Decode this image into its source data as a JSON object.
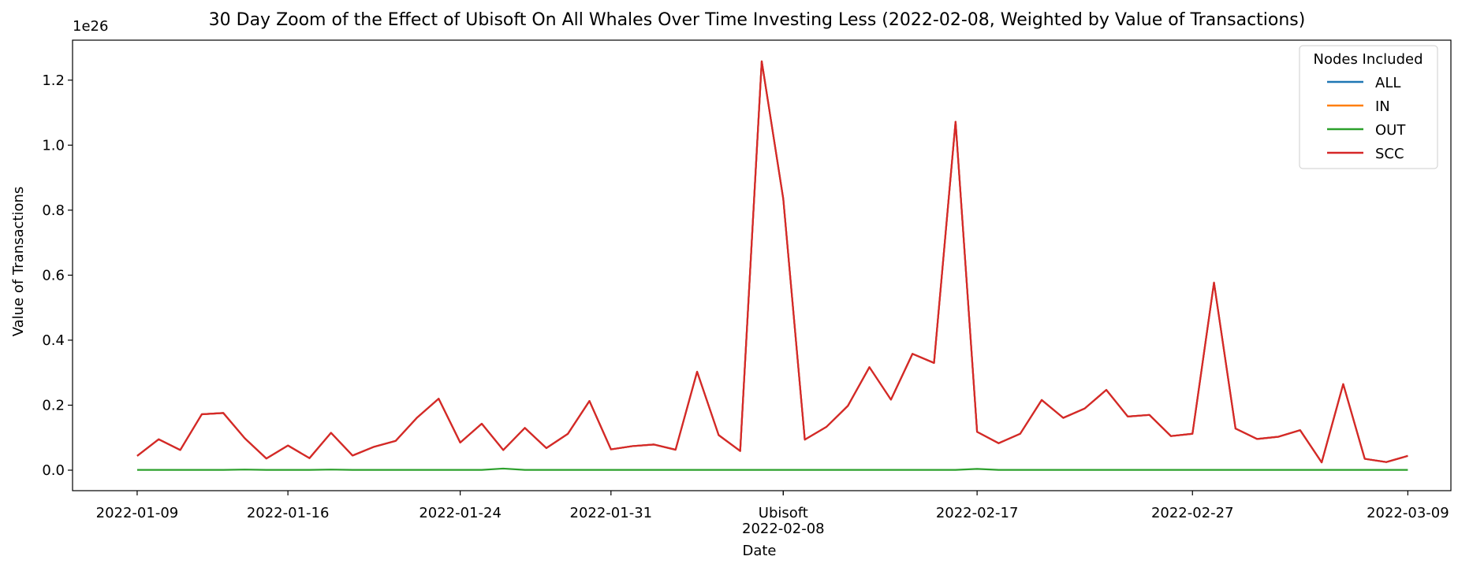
{
  "chart_data": {
    "type": "line",
    "title": "30 Day Zoom of the Effect of Ubisoft On All Whales Over Time Investing Less (2022-02-08, Weighted by Value of Transactions)",
    "xlabel": "Date",
    "ylabel": "Value of Transactions",
    "y_scale_label": "1e26",
    "ylim": [
      -0.063,
      1.323
    ],
    "xlim": [
      "2022-01-06",
      "2022-03-11"
    ],
    "y_ticks": [
      0.0,
      0.2,
      0.4,
      0.6,
      0.8,
      1.0,
      1.2
    ],
    "y_tick_labels": [
      "0.0",
      "0.2",
      "0.4",
      "0.6",
      "0.8",
      "1.0",
      "1.2"
    ],
    "x_ticks": [
      {
        "date": "2022-01-09",
        "label": "2022-01-09"
      },
      {
        "date": "2022-01-16",
        "label": "2022-01-16"
      },
      {
        "date": "2022-01-24",
        "label": "2022-01-24"
      },
      {
        "date": "2022-01-31",
        "label": "2022-01-31"
      },
      {
        "date": "2022-02-08",
        "label": "2022-02-08"
      },
      {
        "date": "2022-02-17",
        "label": "2022-02-17"
      },
      {
        "date": "2022-02-27",
        "label": "2022-02-27"
      },
      {
        "date": "2022-03-09",
        "label": "2022-03-09"
      }
    ],
    "event": {
      "date": "2022-02-08",
      "label": "Ubisoft"
    },
    "grid": false,
    "legend": {
      "title": "Nodes Included",
      "position": "top-right"
    },
    "x": [
      "2022-01-09",
      "2022-01-10",
      "2022-01-11",
      "2022-01-12",
      "2022-01-13",
      "2022-01-14",
      "2022-01-15",
      "2022-01-16",
      "2022-01-17",
      "2022-01-18",
      "2022-01-19",
      "2022-01-20",
      "2022-01-21",
      "2022-01-22",
      "2022-01-23",
      "2022-01-24",
      "2022-01-25",
      "2022-01-26",
      "2022-01-27",
      "2022-01-28",
      "2022-01-29",
      "2022-01-30",
      "2022-01-31",
      "2022-02-01",
      "2022-02-02",
      "2022-02-03",
      "2022-02-04",
      "2022-02-05",
      "2022-02-06",
      "2022-02-07",
      "2022-02-08",
      "2022-02-09",
      "2022-02-10",
      "2022-02-11",
      "2022-02-12",
      "2022-02-13",
      "2022-02-14",
      "2022-02-15",
      "2022-02-16",
      "2022-02-17",
      "2022-02-18",
      "2022-02-19",
      "2022-02-20",
      "2022-02-21",
      "2022-02-22",
      "2022-02-23",
      "2022-02-24",
      "2022-02-25",
      "2022-02-26",
      "2022-02-27",
      "2022-02-28",
      "2022-03-01",
      "2022-03-02",
      "2022-03-03",
      "2022-03-04",
      "2022-03-05",
      "2022-03-06",
      "2022-03-07",
      "2022-03-08",
      "2022-03-09"
    ],
    "series": [
      {
        "name": "ALL",
        "color": "#1f77b4",
        "values": [
          0.044,
          0.095,
          0.062,
          0.172,
          0.176,
          0.098,
          0.036,
          0.076,
          0.037,
          0.115,
          0.045,
          0.072,
          0.09,
          0.162,
          0.22,
          0.085,
          0.143,
          0.062,
          0.13,
          0.068,
          0.112,
          0.213,
          0.064,
          0.074,
          0.079,
          0.063,
          0.303,
          0.108,
          0.059,
          1.258,
          0.835,
          0.094,
          0.133,
          0.198,
          0.317,
          0.217,
          0.358,
          0.33,
          1.072,
          0.118,
          0.083,
          0.112,
          0.216,
          0.161,
          0.19,
          0.247,
          0.165,
          0.17,
          0.105,
          0.112,
          0.577,
          0.128,
          0.096,
          0.103,
          0.123,
          0.024,
          0.265,
          0.035,
          0.025,
          0.044
        ]
      },
      {
        "name": "IN",
        "color": "#ff7f0e",
        "values": [
          0.044,
          0.095,
          0.062,
          0.172,
          0.176,
          0.098,
          0.036,
          0.076,
          0.037,
          0.115,
          0.045,
          0.072,
          0.09,
          0.162,
          0.22,
          0.085,
          0.143,
          0.062,
          0.13,
          0.068,
          0.112,
          0.213,
          0.064,
          0.074,
          0.079,
          0.063,
          0.303,
          0.108,
          0.059,
          1.258,
          0.835,
          0.094,
          0.133,
          0.198,
          0.317,
          0.217,
          0.358,
          0.33,
          1.072,
          0.118,
          0.083,
          0.112,
          0.216,
          0.161,
          0.19,
          0.247,
          0.165,
          0.17,
          0.105,
          0.112,
          0.577,
          0.128,
          0.096,
          0.103,
          0.123,
          0.024,
          0.265,
          0.035,
          0.025,
          0.044
        ]
      },
      {
        "name": "OUT",
        "color": "#2ca02c",
        "values": [
          0.001,
          0.001,
          0.001,
          0.001,
          0.001,
          0.002,
          0.001,
          0.001,
          0.001,
          0.002,
          0.001,
          0.001,
          0.001,
          0.001,
          0.001,
          0.001,
          0.001,
          0.005,
          0.001,
          0.001,
          0.001,
          0.001,
          0.001,
          0.001,
          0.001,
          0.001,
          0.001,
          0.001,
          0.001,
          0.001,
          0.001,
          0.001,
          0.001,
          0.001,
          0.001,
          0.001,
          0.001,
          0.001,
          0.001,
          0.004,
          0.001,
          0.001,
          0.001,
          0.001,
          0.001,
          0.001,
          0.001,
          0.001,
          0.001,
          0.001,
          0.001,
          0.001,
          0.001,
          0.001,
          0.001,
          0.001,
          0.001,
          0.001,
          0.001,
          0.001
        ]
      },
      {
        "name": "SCC",
        "color": "#d62728",
        "values": [
          0.044,
          0.095,
          0.062,
          0.172,
          0.176,
          0.098,
          0.036,
          0.076,
          0.037,
          0.115,
          0.045,
          0.072,
          0.09,
          0.162,
          0.22,
          0.085,
          0.143,
          0.062,
          0.13,
          0.068,
          0.112,
          0.213,
          0.064,
          0.074,
          0.079,
          0.063,
          0.303,
          0.108,
          0.059,
          1.258,
          0.835,
          0.094,
          0.133,
          0.198,
          0.317,
          0.217,
          0.358,
          0.33,
          1.072,
          0.118,
          0.083,
          0.112,
          0.216,
          0.161,
          0.19,
          0.247,
          0.165,
          0.17,
          0.105,
          0.112,
          0.577,
          0.128,
          0.096,
          0.103,
          0.123,
          0.024,
          0.265,
          0.035,
          0.025,
          0.044
        ]
      }
    ]
  }
}
